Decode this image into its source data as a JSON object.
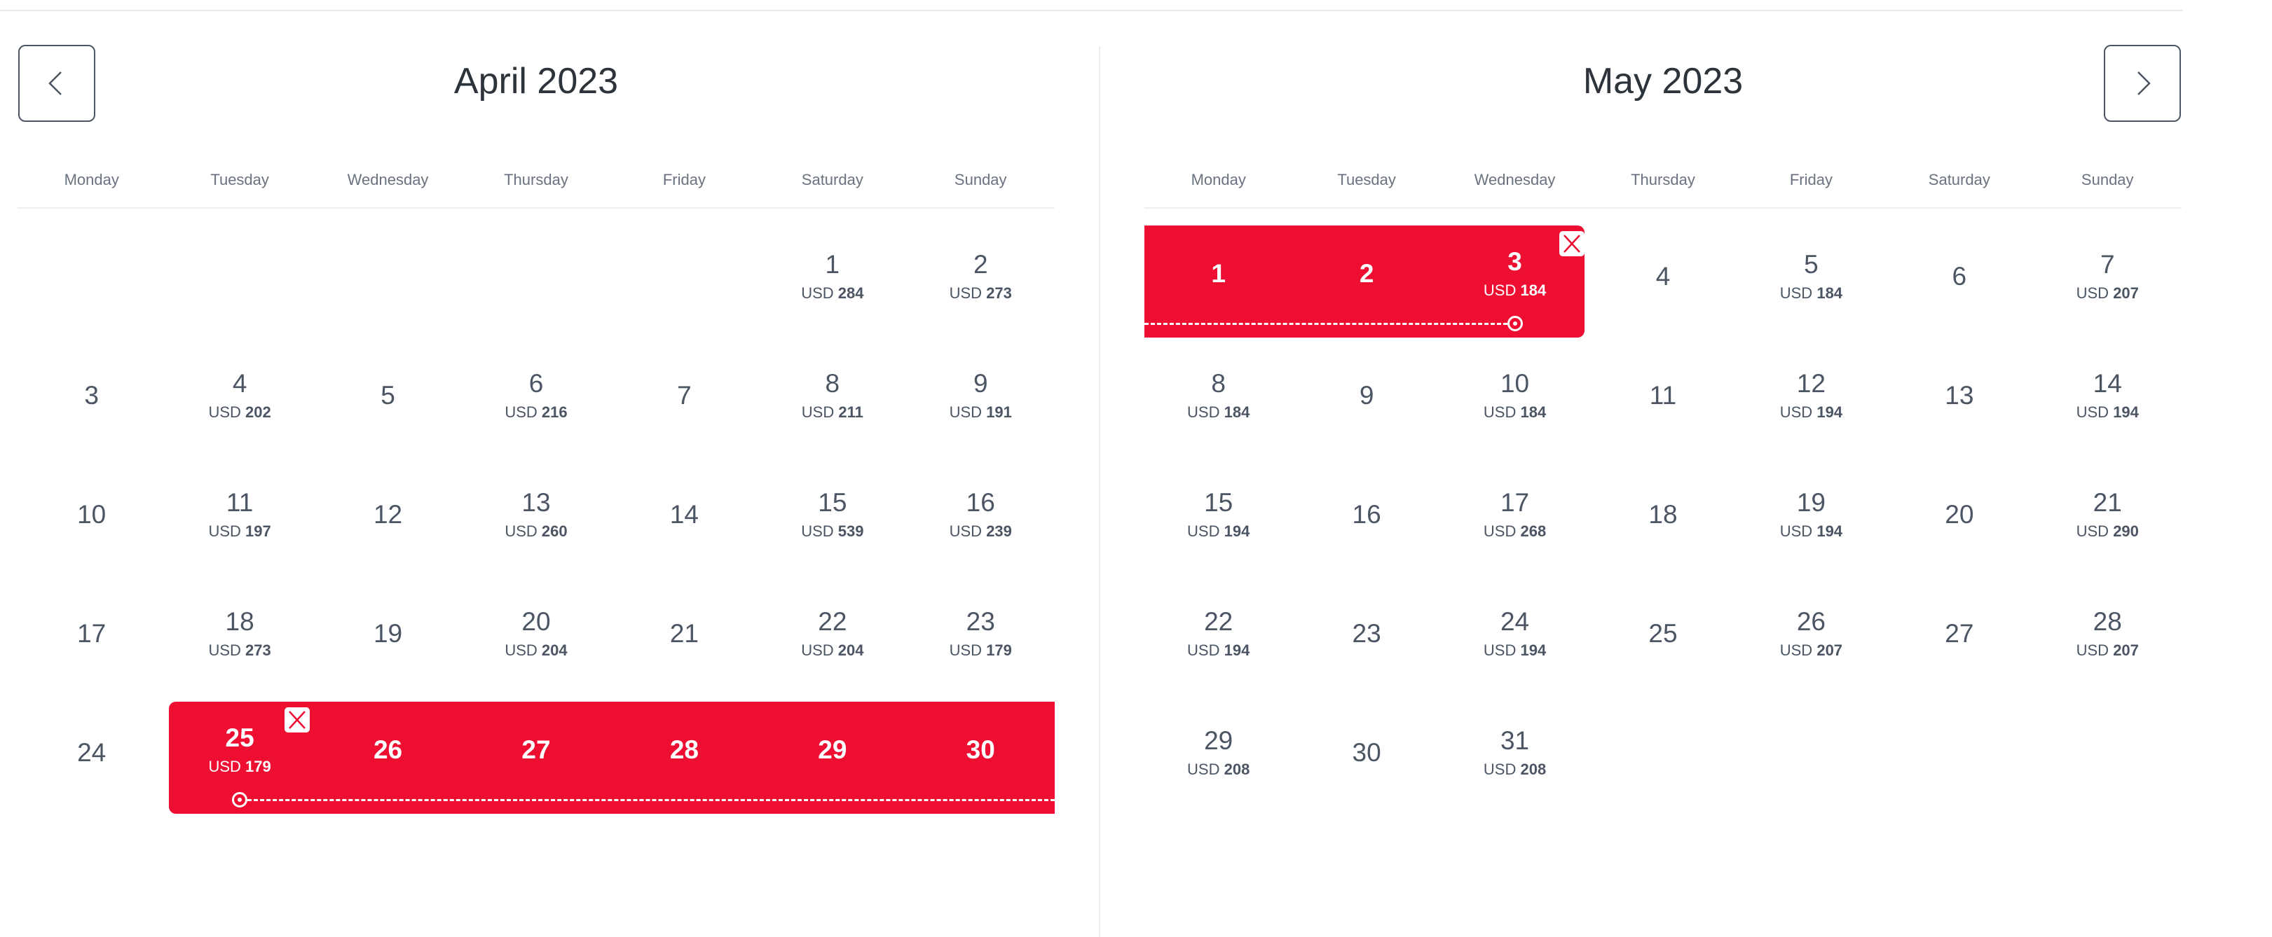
{
  "colors": {
    "accent": "#ed0e32",
    "text": "#4b5563"
  },
  "nav": {
    "prev_icon": "chevron-left-icon",
    "next_icon": "chevron-right-icon"
  },
  "currency": "USD",
  "weekdays": [
    "Monday",
    "Tuesday",
    "Wednesday",
    "Thursday",
    "Friday",
    "Saturday",
    "Sunday"
  ],
  "months": [
    {
      "title": "April 2023",
      "first_weekday_index": 5,
      "days": [
        {
          "day": "1",
          "price": "284"
        },
        {
          "day": "2",
          "price": "273"
        },
        {
          "day": "3"
        },
        {
          "day": "4",
          "price": "202"
        },
        {
          "day": "5"
        },
        {
          "day": "6",
          "price": "216"
        },
        {
          "day": "7"
        },
        {
          "day": "8",
          "price": "211"
        },
        {
          "day": "9",
          "price": "191"
        },
        {
          "day": "10"
        },
        {
          "day": "11",
          "price": "197"
        },
        {
          "day": "12"
        },
        {
          "day": "13",
          "price": "260"
        },
        {
          "day": "14"
        },
        {
          "day": "15",
          "price": "539"
        },
        {
          "day": "16",
          "price": "239"
        },
        {
          "day": "17"
        },
        {
          "day": "18",
          "price": "273"
        },
        {
          "day": "19"
        },
        {
          "day": "20",
          "price": "204"
        },
        {
          "day": "21"
        },
        {
          "day": "22",
          "price": "204"
        },
        {
          "day": "23",
          "price": "179"
        },
        {
          "day": "24"
        },
        {
          "day": "25",
          "price": "179"
        },
        {
          "day": "26"
        },
        {
          "day": "27"
        },
        {
          "day": "28"
        },
        {
          "day": "29"
        },
        {
          "day": "30"
        }
      ],
      "selected_from": 25,
      "selected_to": 30,
      "selection_marker_day": 25,
      "selection_close_day": 25
    },
    {
      "title": "May 2023",
      "first_weekday_index": 0,
      "days": [
        {
          "day": "1"
        },
        {
          "day": "2"
        },
        {
          "day": "3",
          "price": "184"
        },
        {
          "day": "4"
        },
        {
          "day": "5",
          "price": "184"
        },
        {
          "day": "6"
        },
        {
          "day": "7",
          "price": "207"
        },
        {
          "day": "8",
          "price": "184"
        },
        {
          "day": "9"
        },
        {
          "day": "10",
          "price": "184"
        },
        {
          "day": "11"
        },
        {
          "day": "12",
          "price": "194"
        },
        {
          "day": "13"
        },
        {
          "day": "14",
          "price": "194"
        },
        {
          "day": "15",
          "price": "194"
        },
        {
          "day": "16"
        },
        {
          "day": "17",
          "price": "268"
        },
        {
          "day": "18"
        },
        {
          "day": "19",
          "price": "194"
        },
        {
          "day": "20"
        },
        {
          "day": "21",
          "price": "290"
        },
        {
          "day": "22",
          "price": "194"
        },
        {
          "day": "23"
        },
        {
          "day": "24",
          "price": "194"
        },
        {
          "day": "25"
        },
        {
          "day": "26",
          "price": "207"
        },
        {
          "day": "27"
        },
        {
          "day": "28",
          "price": "207"
        },
        {
          "day": "29",
          "price": "208"
        },
        {
          "day": "30"
        },
        {
          "day": "31",
          "price": "208"
        }
      ],
      "selected_from": 1,
      "selected_to": 3,
      "selection_marker_day": 3,
      "selection_close_day": 3
    }
  ]
}
